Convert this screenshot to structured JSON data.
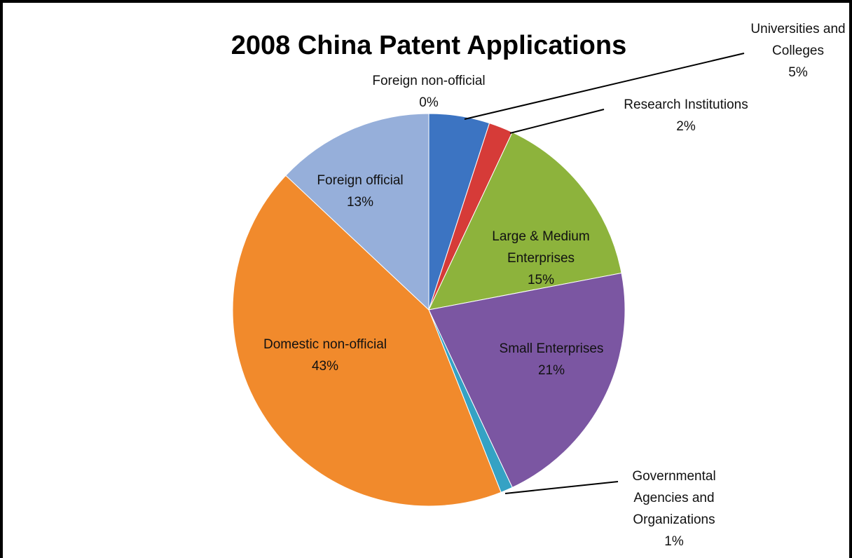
{
  "chart_data": {
    "type": "pie",
    "title": "2008 China Patent Applications",
    "categories": [
      "Universities and Colleges",
      "Research Institutions",
      "Large & Medium Enterprises",
      "Small Enterprises",
      "Governmental Agencies and Organizations",
      "Domestic non-official",
      "Foreign official",
      "Foreign non-official"
    ],
    "values": [
      5,
      2,
      15,
      21,
      1,
      43,
      13,
      0
    ],
    "value_labels": [
      "5%",
      "2%",
      "15%",
      "21%",
      "1%",
      "43%",
      "13%",
      "0%"
    ],
    "colors": [
      "#3c74c2",
      "#d63b38",
      "#8db33c",
      "#7b56a2",
      "#35a2c4",
      "#f18a2c",
      "#96afda",
      "#d77a78"
    ]
  }
}
